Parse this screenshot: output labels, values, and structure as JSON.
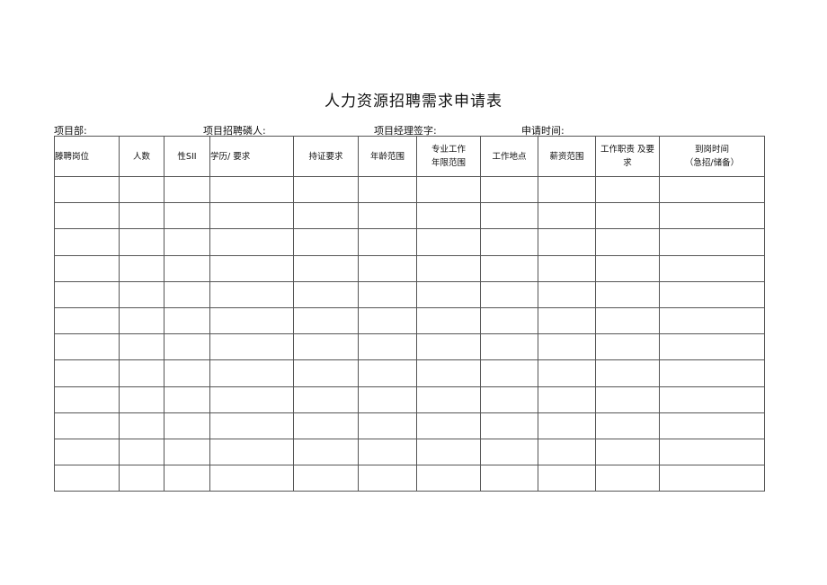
{
  "title": "人力资源招聘需求申请表",
  "meta": {
    "department": "项目部:",
    "recruiter": "项目招聘磷人:",
    "manager_sign": "项目经理签字:",
    "apply_time": "申请时间:"
  },
  "table": {
    "headers": [
      {
        "line1": "滕聘岗位",
        "line2": ""
      },
      {
        "line1": "人数",
        "line2": ""
      },
      {
        "line1": "性SII",
        "line2": ""
      },
      {
        "line1": "学历/ 要求",
        "line2": ""
      },
      {
        "line1": "持证要求",
        "line2": ""
      },
      {
        "line1": "年龄范围",
        "line2": ""
      },
      {
        "line1": "专业工作",
        "line2": "年限范围"
      },
      {
        "line1": "工作地点",
        "line2": ""
      },
      {
        "line1": "薪资范围",
        "line2": ""
      },
      {
        "line1": "工作职责 及要",
        "line2": "求"
      },
      {
        "line1": "到岗时间",
        "line2": "（急招/储备）"
      }
    ],
    "empty_rows": 12
  }
}
